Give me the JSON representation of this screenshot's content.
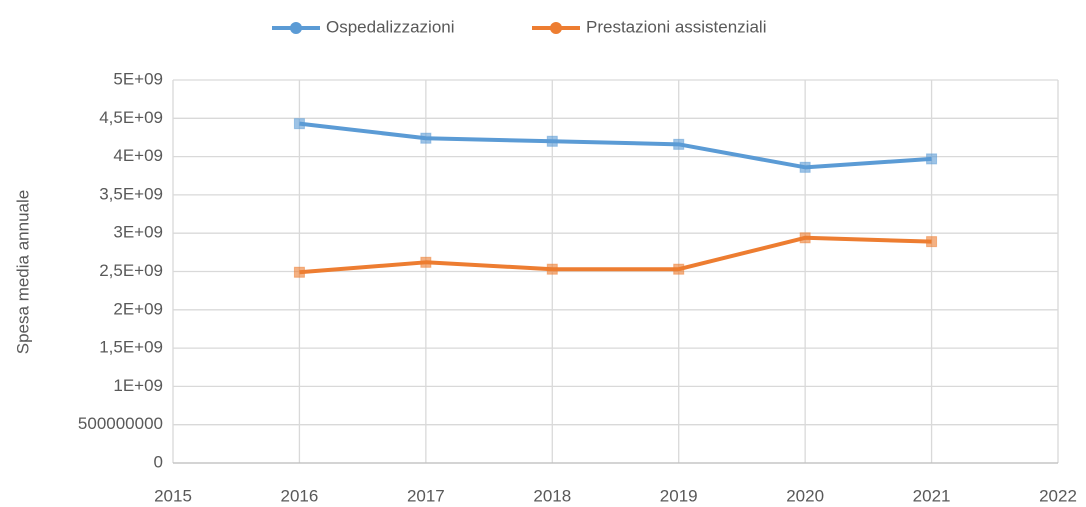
{
  "chart_data": {
    "type": "line",
    "y_label": "Spesa media annuale",
    "x": [
      2016,
      2017,
      2018,
      2019,
      2020,
      2021
    ],
    "series": [
      {
        "name": "Ospedalizzazioni",
        "color": "#5b9bd5",
        "values": [
          4430000000,
          4240000000,
          4200000000,
          4160000000,
          3860000000,
          3970000000
        ]
      },
      {
        "name": "Prestazioni assistenziali",
        "color": "#ed7d31",
        "values": [
          2490000000,
          2620000000,
          2530000000,
          2530000000,
          2940000000,
          2890000000
        ]
      }
    ],
    "xlim": [
      2015,
      2022
    ],
    "xticks": [
      2015,
      2016,
      2017,
      2018,
      2019,
      2020,
      2021,
      2022
    ],
    "ylim": [
      0,
      5000000000
    ],
    "yticks": [
      0,
      500000000,
      {
        "value": 1000000000,
        "label": "1E+09"
      },
      {
        "value": 1500000000,
        "label": "1,5E+09"
      },
      {
        "value": 2000000000,
        "label": "2E+09"
      },
      {
        "value": 2500000000,
        "label": "2,5E+09"
      },
      {
        "value": 3000000000,
        "label": "3E+09"
      },
      {
        "value": 3500000000,
        "label": "3,5E+09"
      },
      {
        "value": 4000000000,
        "label": "4E+09"
      },
      {
        "value": 4500000000,
        "label": "4,5E+09"
      },
      {
        "value": 5000000000,
        "label": "5E+09"
      }
    ],
    "grid": true,
    "legend": "top"
  }
}
